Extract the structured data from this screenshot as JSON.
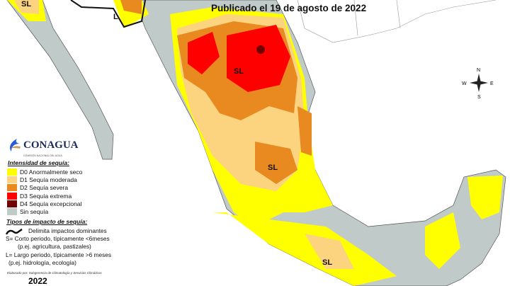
{
  "header": {
    "subtitle": "Publicado el 19 de agosto de 2022"
  },
  "logo": {
    "name": "CONAGUA",
    "sub": "COMISIÓN NACIONAL DEL AGUA"
  },
  "legend": {
    "title": "Intensidad de sequía:",
    "items": [
      {
        "label": "D0 Anormalmente seco",
        "color": "#ffff00"
      },
      {
        "label": "D1 Sequía moderada",
        "color": "#fcd37f"
      },
      {
        "label": "D2 Sequía severa",
        "color": "#e88a1f"
      },
      {
        "label": "D3 Sequía extrema",
        "color": "#ff0000"
      },
      {
        "label": "D4 Sequía excepcional",
        "color": "#730000"
      },
      {
        "label": "Sin sequía",
        "color": "#c0cac8"
      }
    ]
  },
  "impacts": {
    "title": "Tipos de impacto de sequía:",
    "line": "Delimita impactos dominantes",
    "s": "S= Corto periodo, típicamente <6meses",
    "s_ex": "(p.ej. agricultura, pastizales)",
    "l": "L= Largo periodo, típicamente >6 meses",
    "l_ex": "(p.ej. hidrología, ecología)"
  },
  "credit": "Elaborado por: Subgerencia de Climatología y Servicios Climáticos",
  "year": "2022",
  "map_labels": {
    "sl1": "SL",
    "sl2": "SL",
    "sl3": "SL",
    "sl4": "SL",
    "l1": "L"
  },
  "compass": {
    "n": "N",
    "s": "S",
    "e": "E",
    "w": "W"
  }
}
